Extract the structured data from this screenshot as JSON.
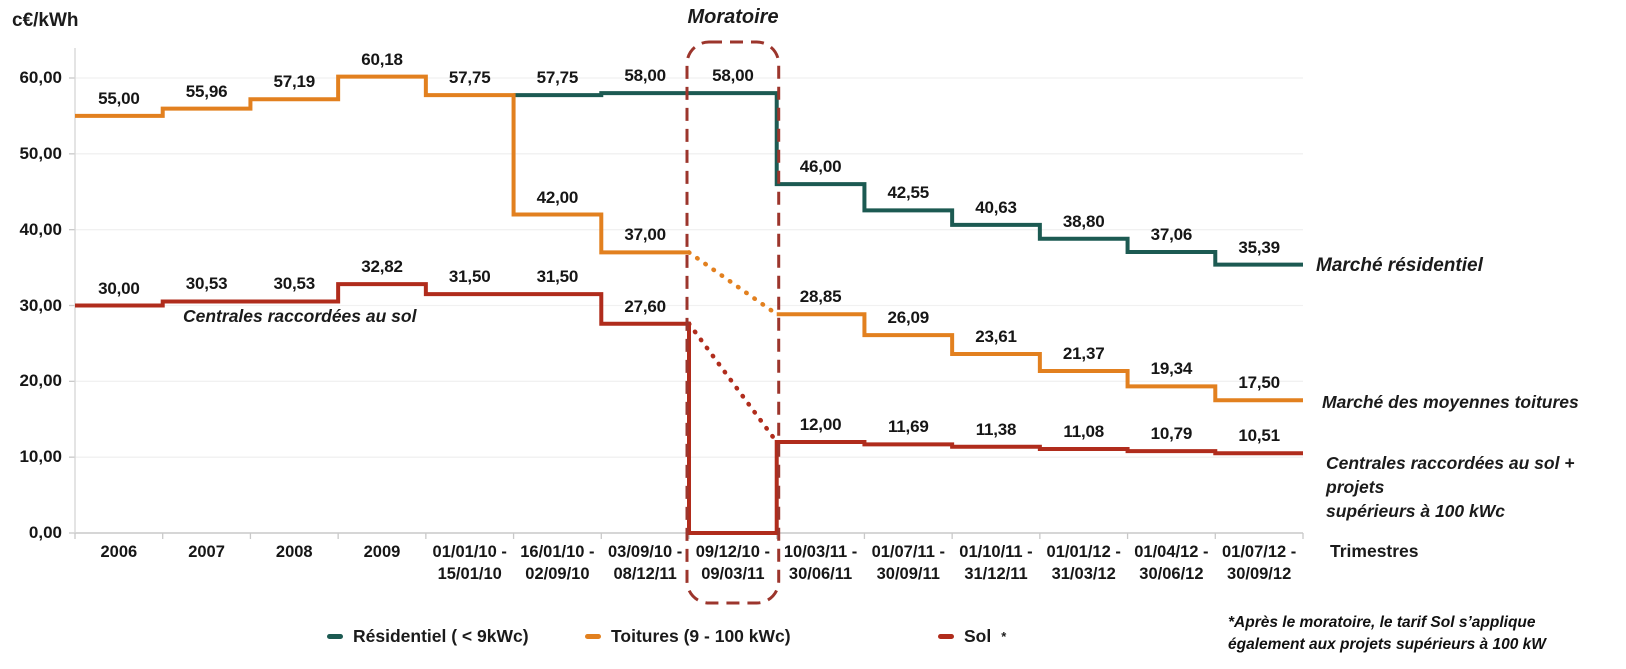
{
  "y_axis_title": "c€/kWh",
  "x_axis_title": "Trimestres",
  "moratoire_label": "Moratoire",
  "annotations": {
    "sol_pre_moratoire": "Centrales raccordées au sol",
    "marche_residentiel": "Marché résidentiel",
    "marche_moyennes_toitures": "Marché des moyennes toitures",
    "sol_post_moratoire": "Centrales raccordées au sol + projets\nsupérieurs à 100 kWc"
  },
  "footnote": "*Après le moratoire, le tarif Sol s’applique\négalement aux projets supérieurs à 100 kW",
  "legend": {
    "items": [
      {
        "label": "Résidentiel ( < 9kWc)",
        "sup": "",
        "color": "#1C5A52"
      },
      {
        "label": "Toitures (9 - 100 kWc)",
        "sup": "",
        "color": "#E2801F"
      },
      {
        "label": "Sol",
        "sup": "*",
        "color": "#B02C1C"
      }
    ]
  },
  "colors": {
    "residentiel": "#1C5A52",
    "toitures": "#E2801F",
    "sol": "#B02C1C",
    "moratoire_box": "#9C352C",
    "gridline": "#F1F1F1",
    "axis": "#C9C9C9"
  },
  "chart_data": {
    "type": "line",
    "subtype": "step",
    "unit": "c€/kWh",
    "title": "",
    "xlabel": "Trimestres",
    "ylabel": "c€/kWh",
    "ylim": [
      0,
      65
    ],
    "grid": true,
    "legend_position": "bottom",
    "ytick_values": [
      0,
      10,
      20,
      30,
      40,
      50,
      60
    ],
    "ytick_labels": [
      "0,00",
      "10,00",
      "20,00",
      "30,00",
      "40,00",
      "50,00",
      "60,00"
    ],
    "categories": [
      "2006",
      "2007",
      "2008",
      "2009",
      "01/01/10 -\n15/01/10",
      "16/01/10 -\n02/09/10",
      "03/09/10 -\n08/12/11",
      "09/12/10 -\n09/03/11",
      "10/03/11 -\n30/06/11",
      "01/07/11 -\n30/09/11",
      "01/10/11 -\n31/12/11",
      "01/01/12 -\n31/03/12",
      "01/04/12 -\n30/06/12",
      "01/07/12 -\n30/09/12"
    ],
    "moratoire_period_index": 7,
    "series": [
      {
        "name": "Résidentiel ( < 9kWc)",
        "key": "residentiel-line",
        "color": "#1C5A52",
        "values": [
          null,
          null,
          null,
          null,
          null,
          57.75,
          58.0,
          58.0,
          46.0,
          42.55,
          40.63,
          38.8,
          37.06,
          35.39
        ],
        "labels": [
          null,
          null,
          null,
          null,
          null,
          "57,75",
          "58,00",
          "58,00",
          "46,00",
          "42,55",
          "40,63",
          "38,80",
          "37,06",
          "35,39"
        ]
      },
      {
        "name": "Toitures (9 - 100 kWc)",
        "key": "toitures-line",
        "color": "#E2801F",
        "values": [
          55.0,
          55.96,
          57.19,
          60.18,
          57.75,
          42.0,
          37.0,
          null,
          28.85,
          26.09,
          23.61,
          21.37,
          19.34,
          17.5
        ],
        "labels": [
          "55,00",
          "55,96",
          "57,19",
          "60,18",
          "57,75",
          "42,00",
          "37,00",
          null,
          "28,85",
          "26,09",
          "23,61",
          "21,37",
          "19,34",
          "17,50"
        ],
        "transition_dotted": {
          "from_index": 6,
          "to_index": 8
        }
      },
      {
        "name": "Sol",
        "key": "sol-line",
        "color": "#B02C1C",
        "values": [
          30.0,
          30.53,
          30.53,
          32.82,
          31.5,
          31.5,
          27.6,
          0,
          12.0,
          11.69,
          11.38,
          11.08,
          10.79,
          10.51
        ],
        "labels": [
          "30,00",
          "30,53",
          "30,53",
          "32,82",
          "31,50",
          "31,50",
          "27,60",
          null,
          "12,00",
          "11,69",
          "11,38",
          "11,08",
          "10,79",
          "10,51"
        ],
        "transition_dotted": {
          "from_index": 6,
          "to_index": 8
        }
      }
    ]
  }
}
